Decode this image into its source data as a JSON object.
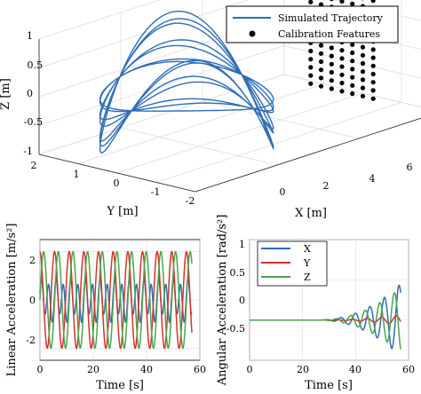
{
  "chart_data": [
    {
      "type": "line",
      "subtype": "3d-trajectory",
      "title": "",
      "xlabel": "X [m]",
      "ylabel": "Y [m]",
      "zlabel": "Z [m]",
      "xlim": [
        0,
        6
      ],
      "ylim": [
        -2,
        2
      ],
      "zlim": [
        -1,
        1
      ],
      "x_ticks": [
        "0",
        "2",
        "4",
        "6"
      ],
      "y_ticks": [
        "2",
        "1",
        "0",
        "-1",
        "-2"
      ],
      "z_ticks": [
        "1",
        "0.5",
        "0",
        "-0.5",
        "-1"
      ],
      "grid": true,
      "legend_position": "top-right",
      "series": [
        {
          "name": "Simulated Trajectory",
          "color": "#2f6db5",
          "kind": "line",
          "description_params": {
            "x_center": 1.5,
            "x_amp": 1.5,
            "y_amp": 1.8,
            "z_amp": 1.0,
            "loops": 7
          }
        },
        {
          "name": "Calibration Features",
          "color": "#000000",
          "kind": "points",
          "grid_points": {
            "x_fixed": 5.5,
            "y_range": [
              -0.8,
              0.8
            ],
            "z_range": [
              -0.85,
              0.85
            ],
            "cols": 7,
            "rows": 13
          }
        }
      ]
    },
    {
      "type": "line",
      "title": "",
      "xlabel": "Time [s]",
      "ylabel": "Linear Acceleration [m/s²]",
      "xlim": [
        0,
        60
      ],
      "ylim": [
        -2.5,
        2.5
      ],
      "x_ticks": [
        "0",
        "20",
        "40",
        "60"
      ],
      "y_ticks": [
        "2",
        "0",
        "-2"
      ],
      "grid": true,
      "series": [
        {
          "name": "X",
          "color": "#2f6db5",
          "amplitude": 1.0,
          "period_s": 5.5,
          "duration_s": 57
        },
        {
          "name": "Y",
          "color": "#d9322c",
          "amplitude": 2.0,
          "period_s": 5.5,
          "phase": 1.6,
          "duration_s": 57
        },
        {
          "name": "Z",
          "color": "#4aa54a",
          "amplitude": 2.0,
          "period_s": 5.5,
          "phase": 0.0,
          "duration_s": 57
        }
      ]
    },
    {
      "type": "line",
      "title": "",
      "xlabel": "Time [s]",
      "ylabel": "Angular Acceleration [rad/s²]",
      "xlim": [
        0,
        60
      ],
      "ylim": [
        -0.5,
        1.0
      ],
      "x_ticks": [
        "0",
        "20",
        "40",
        "60"
      ],
      "y_ticks": [
        "1",
        "0.5",
        "0",
        "-0.5"
      ],
      "grid": true,
      "legend_position": "top-left",
      "series": [
        {
          "name": "X",
          "color": "#2f6db5",
          "growth_start_s": 25,
          "max_amplitude": 0.45,
          "period_s": 5.5,
          "duration_s": 57
        },
        {
          "name": "Y",
          "color": "#d9322c",
          "growth_start_s": 25,
          "max_amplitude": 0.06,
          "period_s": 5.5,
          "duration_s": 57
        },
        {
          "name": "Z",
          "color": "#4aa54a",
          "growth_start_s": 25,
          "max_amplitude": 0.4,
          "period_s": 5.5,
          "duration_s": 57
        }
      ]
    }
  ]
}
